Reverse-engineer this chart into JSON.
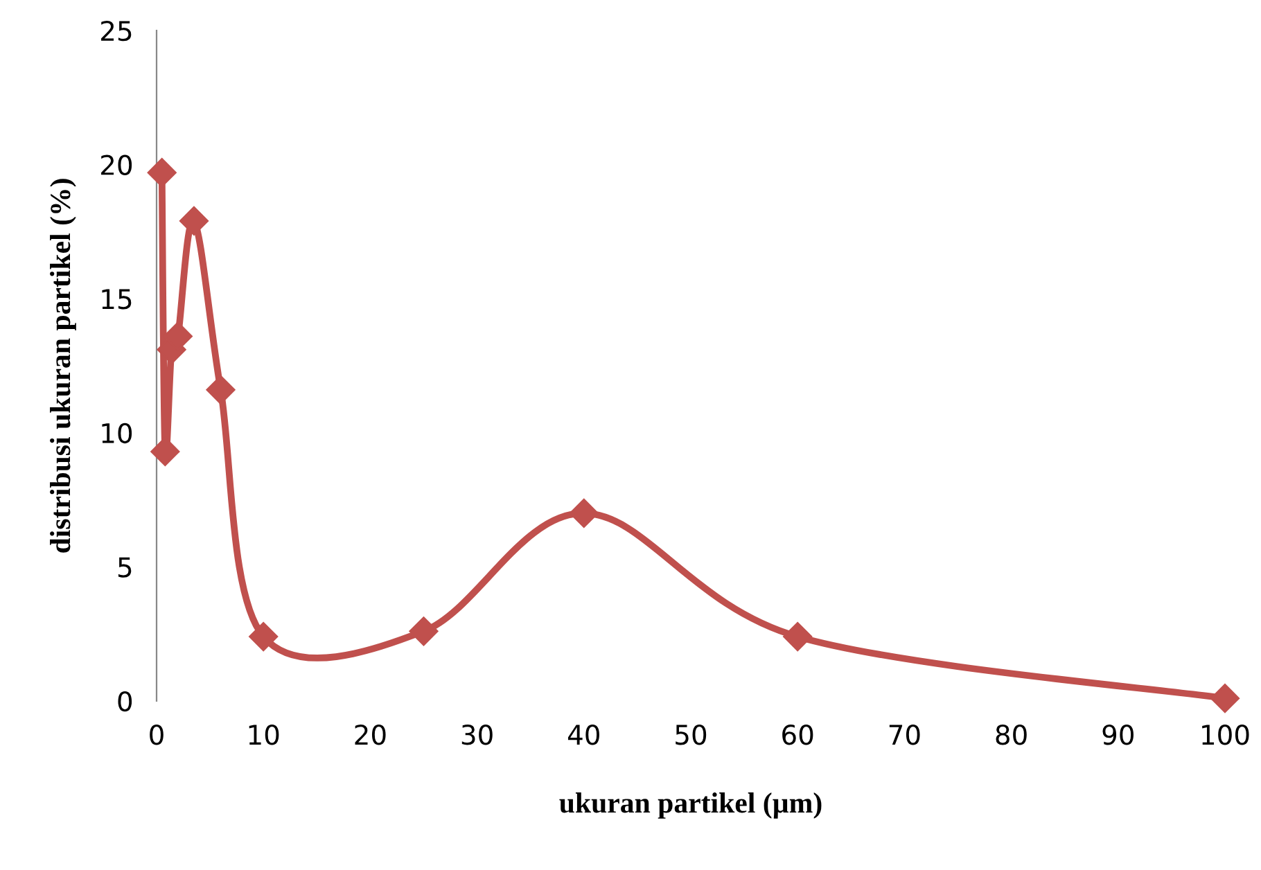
{
  "chart_data": {
    "type": "line",
    "xlabel": "ukuran partikel (µm)",
    "ylabel": "distribusi ukuran partikel (%)",
    "x": [
      0.5,
      0.8,
      1.4,
      2,
      3.5,
      6,
      10,
      25,
      40,
      60,
      100
    ],
    "series": [
      {
        "color": "#c0504d",
        "values": [
          19.7,
          9.3,
          13.1,
          13.6,
          17.9,
          11.6,
          2.4,
          2.6,
          7.0,
          2.4,
          0.1
        ]
      }
    ],
    "marker": "diamond",
    "line_style": "solid",
    "xlim": [
      0,
      100
    ],
    "xticks": [
      0,
      10,
      20,
      30,
      40,
      50,
      60,
      70,
      80,
      90,
      100
    ],
    "ylim": [
      0,
      25
    ],
    "yticks": [
      0,
      5,
      10,
      15,
      20,
      25
    ],
    "grid": false,
    "legend": false
  }
}
